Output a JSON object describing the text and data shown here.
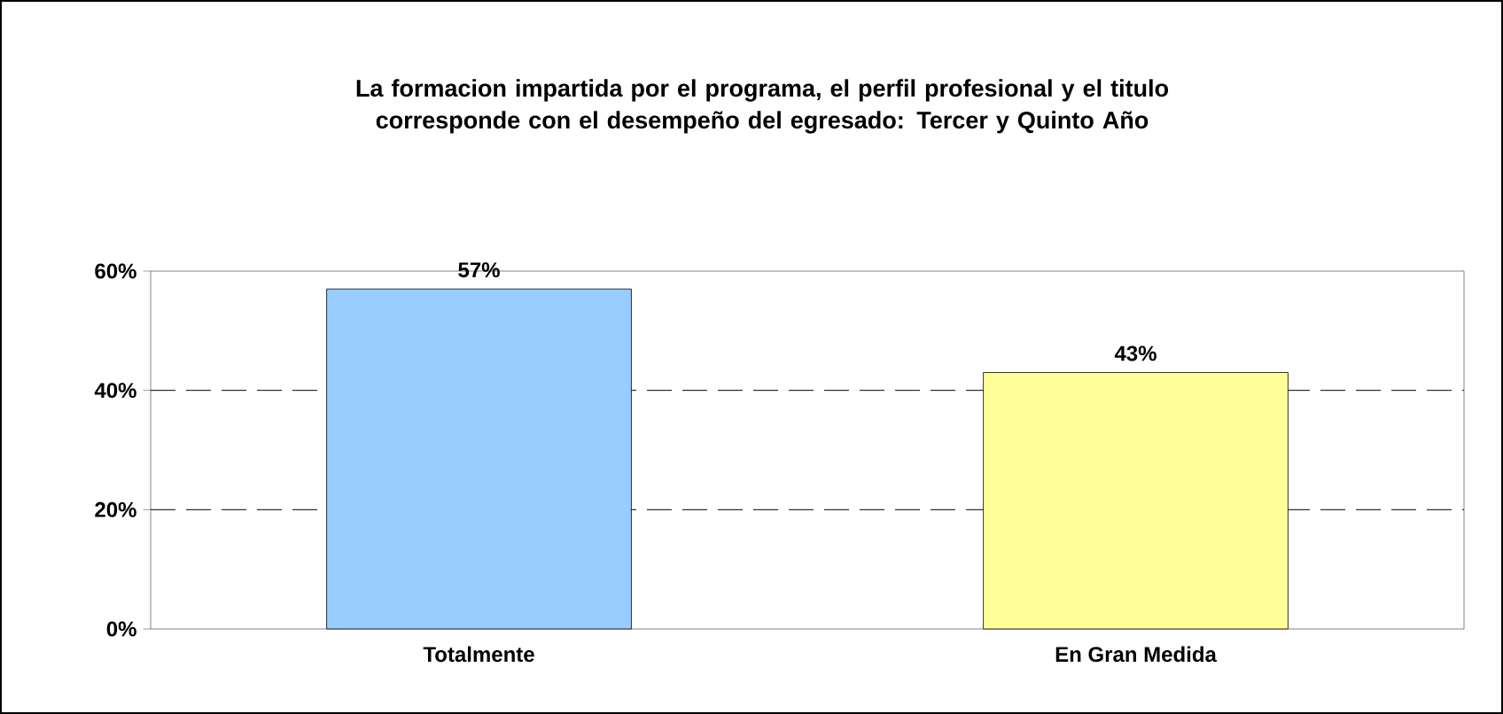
{
  "chart_data": {
    "type": "bar",
    "title": "La formacion impartida por el programa, el perfil profesional y el titulo corresponde con el desempeño del egresado: Tercer y Quinto Año",
    "categories": [
      "Totalmente",
      "En Gran Medida"
    ],
    "values": [
      57,
      43
    ],
    "colors": [
      "#99ccff",
      "#ffff99"
    ],
    "value_labels": [
      "57%",
      "43%"
    ],
    "ylim": [
      0,
      60
    ],
    "yticks": [
      {
        "value": 0,
        "label": "0%"
      },
      {
        "value": 20,
        "label": "20%"
      },
      {
        "value": 40,
        "label": "40%"
      },
      {
        "value": 60,
        "label": "60%"
      }
    ],
    "grid": "y"
  }
}
